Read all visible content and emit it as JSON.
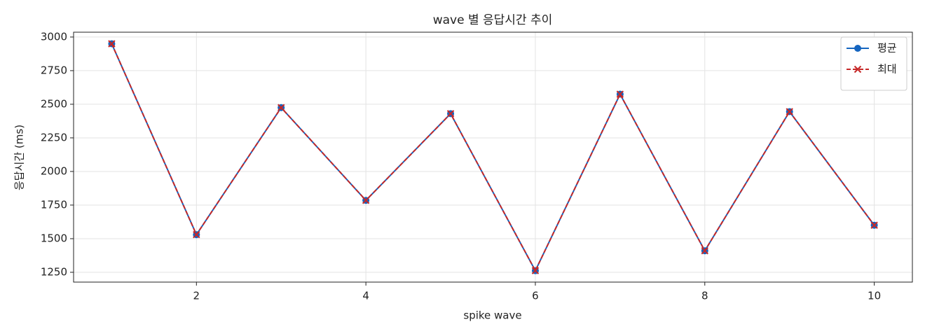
{
  "chart_data": {
    "type": "line",
    "title": "wave 별 응답시간 추이",
    "x_label": "spike wave",
    "y_label": "응답시간 (ms)",
    "x": [
      1,
      2,
      3,
      4,
      5,
      6,
      7,
      8,
      9,
      10
    ],
    "series": [
      {
        "name": "평균",
        "color": "#1565c0",
        "marker": "o",
        "linestyle": "solid",
        "values": [
          2950,
          1530,
          2475,
          1785,
          2430,
          1262,
          2575,
          1410,
          2445,
          1600
        ]
      },
      {
        "name": "최대",
        "color": "#c62828",
        "marker": "x",
        "linestyle": "dashed",
        "values": [
          2950,
          1530,
          2475,
          1785,
          2430,
          1262,
          2575,
          1410,
          2445,
          1600
        ]
      }
    ],
    "xlim": [
      0.55,
      10.45
    ],
    "ylim": [
      1177,
      3036
    ],
    "xticks": [
      2,
      4,
      6,
      8,
      10
    ],
    "yticks": [
      1250,
      1500,
      1750,
      2000,
      2250,
      2500,
      2750,
      3000
    ],
    "grid": true,
    "legend": "upper right"
  }
}
